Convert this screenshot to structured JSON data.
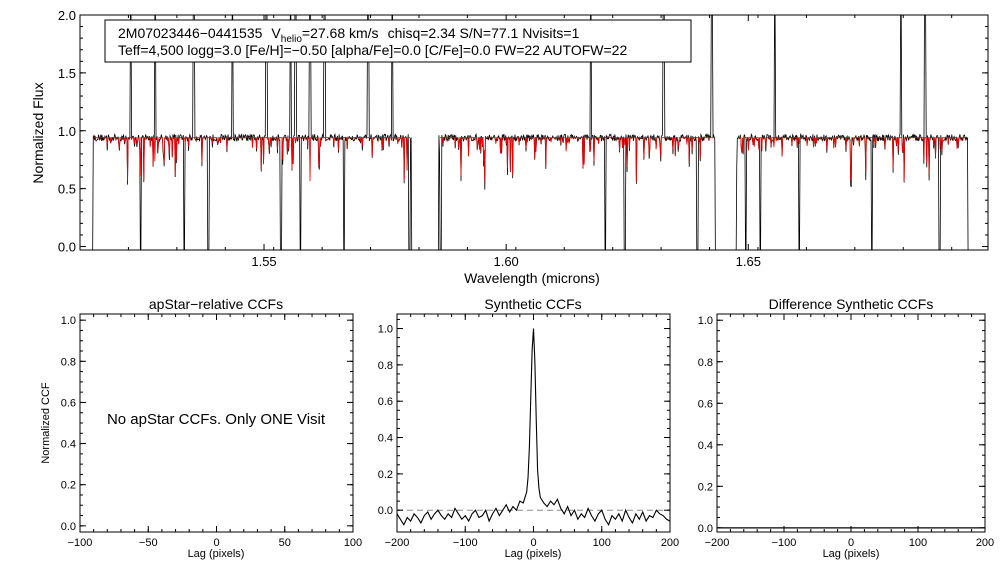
{
  "star_info": {
    "line1_star": "2M07023446−0441535",
    "line1_vhelio_symbol": "V",
    "line1_vhelio_sub": "helio",
    "line1_vhelio_value": "=27.68 km/s",
    "line1_rest": "chisq=2.34  S/N=77.1  Nvisits=1",
    "line2": "Teff=4,500 logg=3.0 [Fe/H]=−0.50 [alpha/Fe]=0.0 [C/Fe]=0.0 FW=22 AUTOFW=22"
  },
  "note": "No apStar CCFs.  Only ONE Visit",
  "colors": {
    "data": "#000000",
    "model": "#ee0000",
    "zero": "#8c8c8c"
  },
  "chart_data": [
    {
      "type": "line",
      "id": "spectrum",
      "title": "",
      "xlabel": "Wavelength (microns)",
      "ylabel": "Normalized Flux",
      "xlim": [
        1.512,
        1.6995
      ],
      "ylim": [
        -0.03,
        2.0
      ],
      "xticks": [
        1.55,
        1.6,
        1.65
      ],
      "xtick_labels": [
        "1.55",
        "1.60",
        "1.65"
      ],
      "yticks": [
        0.0,
        0.5,
        1.0,
        1.5,
        2.0
      ],
      "ytick_labels": [
        "0.0",
        "0.5",
        "1.0",
        "1.5",
        "2.0"
      ],
      "chip_ranges": [
        [
          1.5145,
          1.5805
        ],
        [
          1.586,
          1.6432
        ],
        [
          1.6475,
          1.6955
        ]
      ],
      "continuum": 0.94,
      "series": [
        {
          "name": "Observed spectrum",
          "color": "black",
          "note": "noisy, continuum ~0.95 with many strong absorption dips and a few emission spikes above 2.0"
        },
        {
          "name": "Best-fit synthetic",
          "color": "red",
          "note": "continuum ~0.95 with absorption lines"
        }
      ],
      "spikes": [
        1.5225,
        1.5275,
        1.5355,
        1.5435,
        1.5505,
        1.5555,
        1.5565,
        1.5595,
        1.5625,
        1.5665,
        1.5715,
        1.5765,
        1.6175,
        1.6205,
        1.6325,
        1.6425,
        1.6555,
        1.6815,
        1.6865
      ],
      "deep_dips": [
        1.5145,
        1.5245,
        1.5335,
        1.5385,
        1.5535,
        1.5575,
        1.5665,
        1.58,
        1.5865,
        1.6205,
        1.6245,
        1.6395,
        1.6435,
        1.6495,
        1.6525,
        1.6605,
        1.6755,
        1.6895,
        1.6955
      ]
    },
    {
      "type": "line",
      "id": "apstar_ccf",
      "title": "apStar−relative CCFs",
      "xlabel": "Lag (pixels)",
      "ylabel": "Normalized CCF",
      "xlim": [
        -100,
        100
      ],
      "ylim": [
        -0.03,
        1.03
      ],
      "xticks": [
        -100,
        -50,
        0,
        50,
        100
      ],
      "xtick_labels": [
        "−100",
        "−50",
        "0",
        "50",
        "100"
      ],
      "yticks": [
        0.0,
        0.2,
        0.4,
        0.6,
        0.8,
        1.0
      ],
      "ytick_labels": [
        "0.0",
        "0.2",
        "0.4",
        "0.6",
        "0.8",
        "1.0"
      ],
      "series": []
    },
    {
      "type": "line",
      "id": "synthetic_ccf",
      "title": "Synthetic CCFs",
      "xlabel": "Lag (pixels)",
      "ylabel": "",
      "xlim": [
        -200,
        200
      ],
      "ylim": [
        -0.12,
        1.08
      ],
      "xticks": [
        -200,
        -100,
        0,
        100,
        200
      ],
      "xtick_labels": [
        "−200",
        "−100",
        "0",
        "100",
        "200"
      ],
      "yticks": [
        0.0,
        0.2,
        0.4,
        0.6,
        0.8,
        1.0
      ],
      "ytick_labels": [
        "0.0",
        "0.2",
        "0.4",
        "0.6",
        "0.8",
        "1.0"
      ],
      "reference_line_y": 0.0,
      "series": [
        {
          "name": "Synthetic CCF",
          "x": [
            -200,
            -195,
            -190,
            -185,
            -180,
            -175,
            -170,
            -165,
            -160,
            -155,
            -150,
            -145,
            -140,
            -135,
            -130,
            -125,
            -120,
            -115,
            -110,
            -105,
            -100,
            -95,
            -90,
            -85,
            -80,
            -75,
            -70,
            -65,
            -60,
            -55,
            -50,
            -45,
            -40,
            -35,
            -30,
            -25,
            -20,
            -15,
            -10,
            -8,
            -6,
            -4,
            -2,
            0,
            2,
            4,
            6,
            8,
            10,
            15,
            20,
            25,
            30,
            35,
            40,
            45,
            50,
            55,
            60,
            65,
            70,
            75,
            80,
            85,
            90,
            95,
            100,
            105,
            110,
            115,
            120,
            125,
            130,
            135,
            140,
            145,
            150,
            155,
            160,
            165,
            170,
            175,
            180,
            185,
            190,
            195,
            200
          ],
          "y": [
            -0.02,
            -0.05,
            -0.08,
            -0.04,
            -0.06,
            -0.02,
            -0.04,
            -0.07,
            -0.03,
            -0.01,
            -0.05,
            -0.02,
            0.0,
            -0.03,
            -0.05,
            -0.02,
            -0.04,
            0.01,
            -0.02,
            -0.05,
            -0.03,
            -0.06,
            -0.02,
            0.0,
            -0.04,
            -0.03,
            0.0,
            -0.06,
            -0.02,
            0.01,
            -0.03,
            0.0,
            0.03,
            -0.01,
            0.02,
            0.0,
            0.05,
            0.04,
            0.1,
            0.18,
            0.35,
            0.62,
            0.88,
            1.0,
            0.82,
            0.5,
            0.22,
            0.12,
            0.07,
            0.04,
            0.02,
            0.05,
            0.03,
            0.06,
            0.01,
            -0.02,
            0.02,
            -0.03,
            0.0,
            -0.05,
            -0.02,
            -0.04,
            0.01,
            -0.03,
            -0.06,
            -0.02,
            0.0,
            -0.05,
            -0.08,
            -0.03,
            -0.05,
            -0.02,
            -0.06,
            0.0,
            -0.04,
            -0.07,
            -0.02,
            -0.05,
            -0.01,
            -0.06,
            -0.03,
            -0.04,
            0.0,
            -0.02,
            -0.03,
            -0.05,
            -0.06
          ]
        }
      ]
    },
    {
      "type": "line",
      "id": "diff_ccf",
      "title": "Difference Synthetic CCFs",
      "xlabel": "Lag (pixels)",
      "ylabel": "",
      "xlim": [
        -200,
        200
      ],
      "ylim": [
        -0.02,
        1.03
      ],
      "xticks": [
        -200,
        -100,
        0,
        100,
        200
      ],
      "xtick_labels": [
        "−200",
        "−100",
        "0",
        "100",
        "200"
      ],
      "yticks": [
        0.0,
        0.2,
        0.4,
        0.6,
        0.8,
        1.0
      ],
      "ytick_labels": [
        "0.0",
        "0.2",
        "0.4",
        "0.6",
        "0.8",
        "1.0"
      ],
      "series": [
        {
          "name": "Difference CCF",
          "x": [
            -200,
            200
          ],
          "y": [
            0.0,
            0.0
          ]
        }
      ]
    }
  ]
}
